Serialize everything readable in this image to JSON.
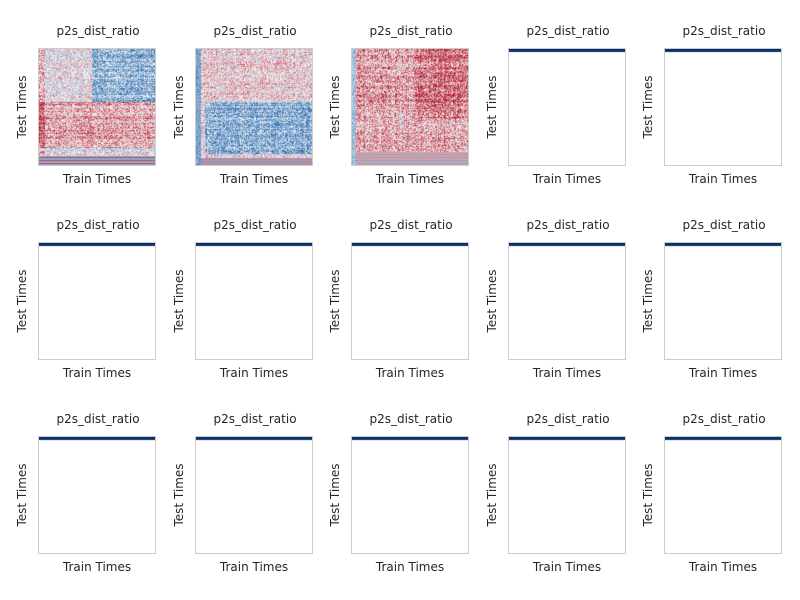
{
  "chart_data": {
    "type": "heatmap",
    "layout": {
      "rows": 3,
      "cols": 5
    },
    "colormap": "RdBu_r",
    "colors": {
      "negative": "#2166ac",
      "positive": "#b2182b",
      "neutral": "#f7f7f7",
      "frame": "#cccccc"
    },
    "grid": false,
    "panels": [
      {
        "title": "p2s_dist_ratio",
        "xlabel": "Train Times",
        "ylabel": "Test Times",
        "content": "full",
        "variant": "mixed"
      },
      {
        "title": "p2s_dist_ratio",
        "xlabel": "Train Times",
        "ylabel": "Test Times",
        "content": "full",
        "variant": "blue-lower"
      },
      {
        "title": "p2s_dist_ratio",
        "xlabel": "Train Times",
        "ylabel": "Test Times",
        "content": "full",
        "variant": "red-dominant"
      },
      {
        "title": "p2s_dist_ratio",
        "xlabel": "Train Times",
        "ylabel": "Test Times",
        "content": "top-row-only",
        "variant": "blue-top"
      },
      {
        "title": "p2s_dist_ratio",
        "xlabel": "Train Times",
        "ylabel": "Test Times",
        "content": "top-row-only",
        "variant": "blue-top"
      },
      {
        "title": "p2s_dist_ratio",
        "xlabel": "Train Times",
        "ylabel": "Test Times",
        "content": "top-row-only",
        "variant": "blue-top"
      },
      {
        "title": "p2s_dist_ratio",
        "xlabel": "Train Times",
        "ylabel": "Test Times",
        "content": "top-row-only",
        "variant": "blue-top"
      },
      {
        "title": "p2s_dist_ratio",
        "xlabel": "Train Times",
        "ylabel": "Test Times",
        "content": "top-row-only",
        "variant": "blue-top"
      },
      {
        "title": "p2s_dist_ratio",
        "xlabel": "Train Times",
        "ylabel": "Test Times",
        "content": "top-row-only",
        "variant": "blue-top"
      },
      {
        "title": "p2s_dist_ratio",
        "xlabel": "Train Times",
        "ylabel": "Test Times",
        "content": "top-row-only",
        "variant": "blue-top"
      },
      {
        "title": "p2s_dist_ratio",
        "xlabel": "Train Times",
        "ylabel": "Test Times",
        "content": "top-row-only",
        "variant": "blue-top"
      },
      {
        "title": "p2s_dist_ratio",
        "xlabel": "Train Times",
        "ylabel": "Test Times",
        "content": "top-row-only",
        "variant": "blue-top"
      },
      {
        "title": "p2s_dist_ratio",
        "xlabel": "Train Times",
        "ylabel": "Test Times",
        "content": "top-row-only",
        "variant": "blue-top"
      },
      {
        "title": "p2s_dist_ratio",
        "xlabel": "Train Times",
        "ylabel": "Test Times",
        "content": "top-row-only",
        "variant": "blue-top"
      },
      {
        "title": "p2s_dist_ratio",
        "xlabel": "Train Times",
        "ylabel": "Test Times",
        "content": "top-row-only",
        "variant": "blue-top"
      }
    ]
  }
}
